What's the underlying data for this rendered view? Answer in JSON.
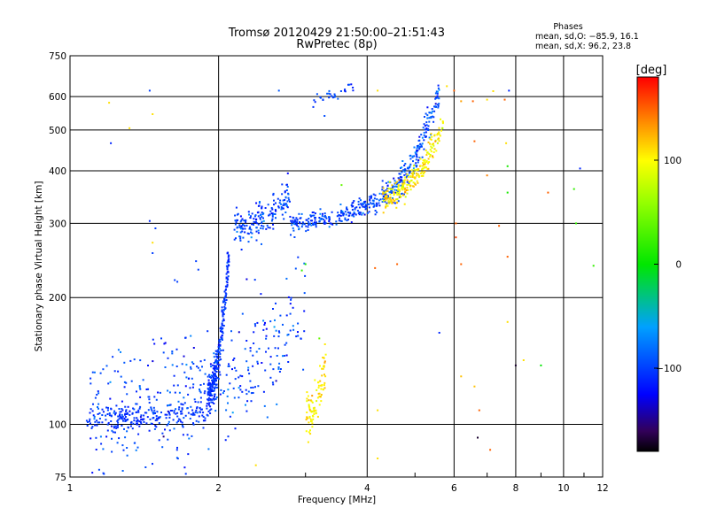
{
  "chart_data": {
    "type": "scatter",
    "title": "Tromsø 20120429 21:50:00–21:51:43",
    "subtitle": "RwPretec (8p)",
    "xlabel": "Frequency [MHz]",
    "ylabel": "Stationary phase Virtual Height [km]",
    "x_scale": "log",
    "y_scale": "log",
    "xlim": [
      1,
      12
    ],
    "ylim": [
      75,
      750
    ],
    "x_ticks": [
      1,
      2,
      4,
      6,
      8,
      10,
      12
    ],
    "y_ticks": [
      75,
      100,
      200,
      300,
      400,
      500,
      600,
      750
    ],
    "grid": true,
    "phases_box": {
      "title": "Phases",
      "line1": "mean, sd,O: −85.9, 16.1",
      "line2": "mean, sd,X:  96.2, 23.8"
    },
    "colorbar": {
      "label": "[deg]",
      "range": [
        -180,
        180
      ],
      "ticks": [
        100,
        0,
        -100
      ]
    },
    "traces": [
      {
        "x_start": 1.08,
        "x_end": 1.9,
        "h_start": 103,
        "h_end": 108,
        "phase_mean": -105,
        "spread": 5,
        "n": 180,
        "scatter_h": 0.035
      },
      {
        "x_start": 1.1,
        "x_end": 3.0,
        "h_start": 104,
        "h_end": 180,
        "phase_mean": -100,
        "spread": 15,
        "n": 420,
        "scatter_h": 0.18
      },
      {
        "x_start": 1.9,
        "x_end": 2.1,
        "h_start": 120,
        "h_end": 255,
        "phase_mean": -105,
        "spread": 8,
        "n": 260,
        "scatter_h": 0.05
      },
      {
        "x_start": 3.0,
        "x_end": 3.3,
        "h_start": 104,
        "h_end": 140,
        "phase_mean": 105,
        "spread": 10,
        "n": 90,
        "scatter_h": 0.06
      },
      {
        "x_start": 2.15,
        "x_end": 2.8,
        "h_start": 296,
        "h_end": 350,
        "phase_mean": -98,
        "spread": 12,
        "n": 180,
        "scatter_h": 0.05
      },
      {
        "x_start": 2.8,
        "x_end": 4.2,
        "h_start": 300,
        "h_end": 340,
        "phase_mean": -100,
        "spread": 12,
        "n": 220,
        "scatter_h": 0.025
      },
      {
        "x_start": 4.2,
        "x_end": 5.6,
        "h_start": 345,
        "h_end": 620,
        "phase_mean": -95,
        "spread": 14,
        "n": 230,
        "scatter_h": 0.04
      },
      {
        "x_start": 4.3,
        "x_end": 5.7,
        "h_start": 345,
        "h_end": 520,
        "phase_mean": 105,
        "spread": 14,
        "n": 230,
        "scatter_h": 0.035
      },
      {
        "x_start": 3.1,
        "x_end": 3.75,
        "h_start": 590,
        "h_end": 640,
        "phase_mean": -100,
        "spread": 8,
        "n": 30,
        "scatter_h": 0.02
      }
    ],
    "scattered_points": [
      {
        "x": 1.21,
        "h": 465,
        "phase": -110
      },
      {
        "x": 1.2,
        "h": 580,
        "phase": 110
      },
      {
        "x": 1.32,
        "h": 505,
        "phase": 110
      },
      {
        "x": 1.45,
        "h": 620,
        "phase": -100
      },
      {
        "x": 1.47,
        "h": 545,
        "phase": 110
      },
      {
        "x": 1.45,
        "h": 304,
        "phase": -110
      },
      {
        "x": 1.47,
        "h": 270,
        "phase": 110
      },
      {
        "x": 1.47,
        "h": 255,
        "phase": -100
      },
      {
        "x": 1.49,
        "h": 292,
        "phase": -100
      },
      {
        "x": 1.63,
        "h": 220,
        "phase": -100
      },
      {
        "x": 1.65,
        "h": 218,
        "phase": -100
      },
      {
        "x": 1.8,
        "h": 244,
        "phase": -100
      },
      {
        "x": 1.82,
        "h": 233,
        "phase": -100
      },
      {
        "x": 2.65,
        "h": 620,
        "phase": -90
      },
      {
        "x": 2.38,
        "h": 80,
        "phase": 110
      },
      {
        "x": 3.55,
        "h": 370,
        "phase": 40
      },
      {
        "x": 3.0,
        "h": 240,
        "phase": 10
      },
      {
        "x": 2.95,
        "h": 232,
        "phase": 20
      },
      {
        "x": 3.2,
        "h": 160,
        "phase": 40
      },
      {
        "x": 4.2,
        "h": 620,
        "phase": 110
      },
      {
        "x": 4.15,
        "h": 235,
        "phase": 150
      },
      {
        "x": 4.2,
        "h": 108,
        "phase": 110
      },
      {
        "x": 4.2,
        "h": 83,
        "phase": 110
      },
      {
        "x": 4.6,
        "h": 240,
        "phase": 150
      },
      {
        "x": 5.8,
        "h": 635,
        "phase": 110
      },
      {
        "x": 5.6,
        "h": 165,
        "phase": -110
      },
      {
        "x": 6.0,
        "h": 620,
        "phase": 150
      },
      {
        "x": 6.05,
        "h": 300,
        "phase": 150
      },
      {
        "x": 6.05,
        "h": 278,
        "phase": 160
      },
      {
        "x": 6.2,
        "h": 585,
        "phase": 130
      },
      {
        "x": 6.2,
        "h": 240,
        "phase": 150
      },
      {
        "x": 6.2,
        "h": 130,
        "phase": 120
      },
      {
        "x": 6.55,
        "h": 585,
        "phase": 150
      },
      {
        "x": 6.6,
        "h": 470,
        "phase": 150
      },
      {
        "x": 6.6,
        "h": 123,
        "phase": 120
      },
      {
        "x": 6.7,
        "h": 93,
        "phase": -170
      },
      {
        "x": 6.75,
        "h": 108,
        "phase": 150
      },
      {
        "x": 7.0,
        "h": 590,
        "phase": 110
      },
      {
        "x": 7.0,
        "h": 390,
        "phase": 140
      },
      {
        "x": 7.1,
        "h": 87,
        "phase": 150
      },
      {
        "x": 7.2,
        "h": 618,
        "phase": 110
      },
      {
        "x": 7.4,
        "h": 296,
        "phase": 150
      },
      {
        "x": 7.6,
        "h": 590,
        "phase": 150
      },
      {
        "x": 7.65,
        "h": 465,
        "phase": 110
      },
      {
        "x": 7.7,
        "h": 410,
        "phase": 10
      },
      {
        "x": 7.7,
        "h": 355,
        "phase": 10
      },
      {
        "x": 7.7,
        "h": 250,
        "phase": 150
      },
      {
        "x": 7.7,
        "h": 175,
        "phase": 110
      },
      {
        "x": 7.75,
        "h": 620,
        "phase": -110
      },
      {
        "x": 8.0,
        "h": 138,
        "phase": -170
      },
      {
        "x": 8.3,
        "h": 142,
        "phase": 110
      },
      {
        "x": 9.0,
        "h": 138,
        "phase": 0
      },
      {
        "x": 9.3,
        "h": 355,
        "phase": 150
      },
      {
        "x": 10.5,
        "h": 362,
        "phase": 20
      },
      {
        "x": 10.6,
        "h": 300,
        "phase": 20
      },
      {
        "x": 10.8,
        "h": 405,
        "phase": -110
      },
      {
        "x": 11.5,
        "h": 238,
        "phase": 20
      }
    ]
  }
}
